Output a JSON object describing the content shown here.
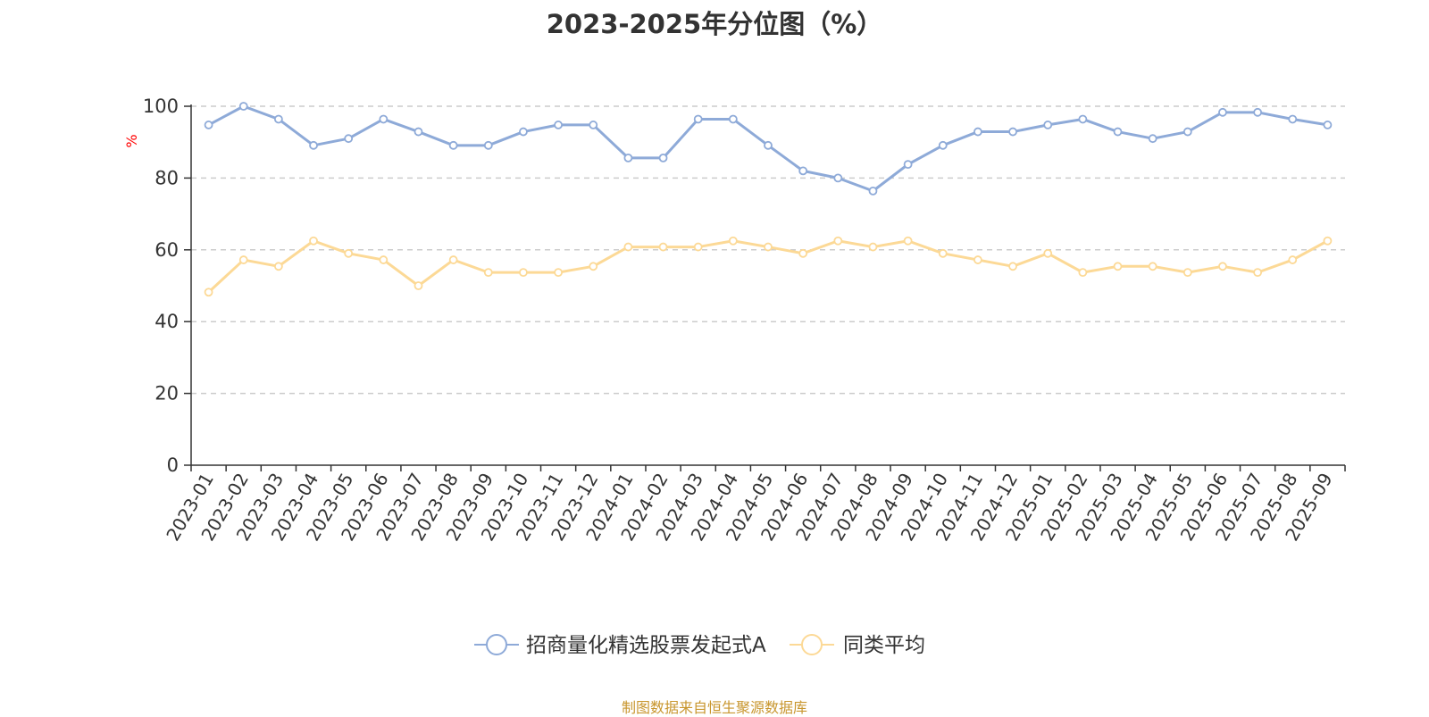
{
  "chart_data": {
    "type": "line",
    "title": "2023-2025年分位图（%）",
    "ylabel": "%",
    "ylim": [
      0,
      100
    ],
    "yticks": [
      0,
      20,
      40,
      60,
      80,
      100
    ],
    "grid": true,
    "legend_position": "bottom-center",
    "categories": [
      "2023-01",
      "2023-02",
      "2023-03",
      "2023-04",
      "2023-05",
      "2023-06",
      "2023-07",
      "2023-08",
      "2023-09",
      "2023-10",
      "2023-11",
      "2023-12",
      "2024-01",
      "2024-02",
      "2024-03",
      "2024-04",
      "2024-05",
      "2024-06",
      "2024-07",
      "2024-08",
      "2024-09",
      "2024-10",
      "2024-11",
      "2024-12",
      "2025-01",
      "2025-02",
      "2025-03",
      "2025-04",
      "2025-05",
      "2025-06",
      "2025-07",
      "2025-08",
      "2025-09"
    ],
    "series": [
      {
        "name": "招商量化精选股票发起式A",
        "color": "#8eaad8",
        "values": [
          94.8,
          100,
          96.4,
          89.1,
          91,
          96.4,
          92.9,
          89.1,
          89.1,
          92.9,
          94.8,
          94.8,
          85.6,
          85.6,
          96.4,
          96.4,
          89.1,
          82,
          80,
          76.4,
          83.8,
          89.1,
          92.9,
          92.9,
          94.8,
          96.4,
          92.9,
          91,
          92.9,
          98.3,
          98.3,
          96.4,
          94.8
        ]
      },
      {
        "name": "同类平均",
        "color": "#fcd996",
        "values": [
          48.2,
          57.2,
          55.4,
          62.5,
          59,
          57.2,
          50,
          57.2,
          53.7,
          53.7,
          53.7,
          55.4,
          60.8,
          60.8,
          60.8,
          62.5,
          60.8,
          59,
          62.5,
          60.8,
          62.5,
          59,
          57.2,
          55.4,
          59,
          53.7,
          55.4,
          55.4,
          53.7,
          55.4,
          53.7,
          57.2,
          62.5
        ]
      }
    ]
  },
  "footer": {
    "source": "制图数据来自恒生聚源数据库"
  }
}
